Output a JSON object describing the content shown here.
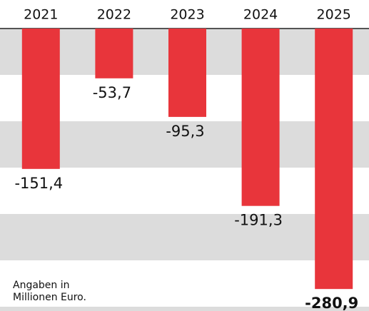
{
  "chart_data": {
    "type": "bar",
    "categories": [
      "2021",
      "2022",
      "2023",
      "2024",
      "2025"
    ],
    "values": [
      -151.4,
      -53.7,
      -95.3,
      -191.3,
      -280.9
    ],
    "value_labels": [
      "-151,4",
      "-53,7",
      "-95,3",
      "-191,3",
      "-280,9"
    ],
    "color": "#e8353b",
    "ylim": [
      -300,
      0
    ],
    "yticks": [
      0,
      -50,
      -100,
      -150,
      -200,
      -250,
      -300
    ],
    "grid": true,
    "note": "Angaben in Millionen Euro."
  }
}
